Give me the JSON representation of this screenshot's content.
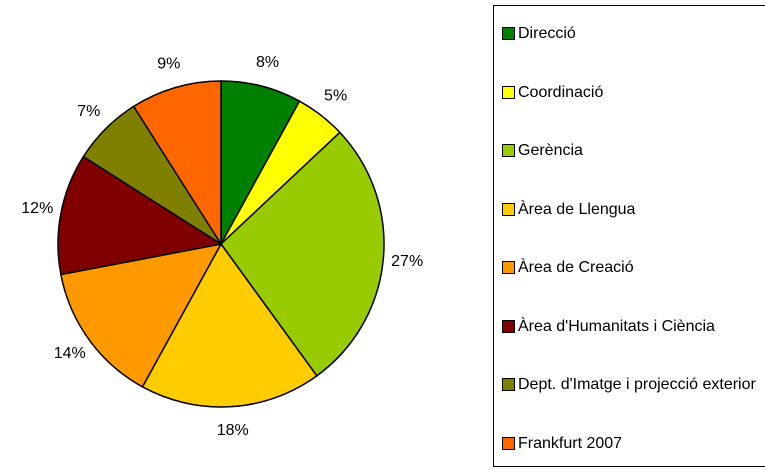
{
  "chart_data": {
    "type": "pie",
    "categories": [
      "Direcció",
      "Coordinació",
      "Gerència",
      "Àrea de Llengua",
      "Àrea de Creació",
      "Àrea d'Humanitats i Ciència",
      "Dept. d'Imatge i projecció exterior",
      "Frankfurt 2007"
    ],
    "values": [
      8,
      5,
      27,
      18,
      14,
      12,
      7,
      9
    ],
    "value_labels": [
      "8%",
      "5%",
      "27%",
      "18%",
      "14%",
      "12%",
      "7%",
      "9%"
    ],
    "colors": [
      "#008000",
      "#ffff00",
      "#99cc00",
      "#ffcc00",
      "#ff9900",
      "#800000",
      "#808000",
      "#ff6600"
    ]
  }
}
